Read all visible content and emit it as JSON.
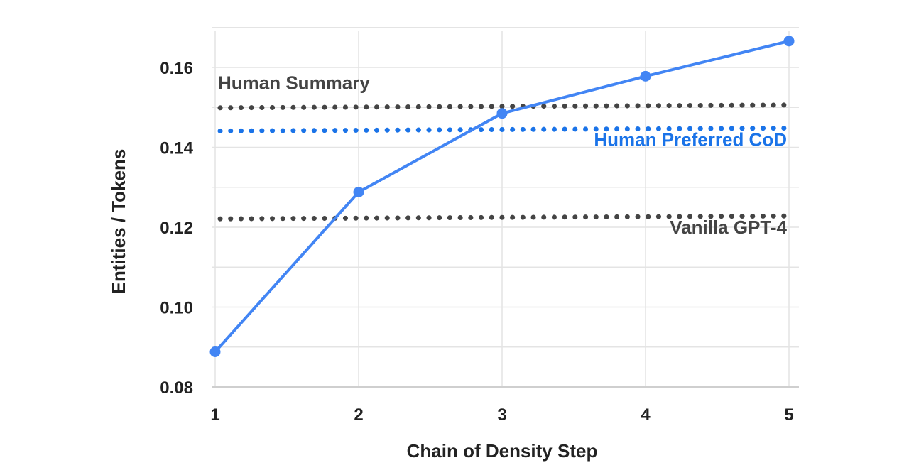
{
  "chart_data": {
    "type": "line",
    "xlabel": "Chain of Density Step",
    "ylabel": "Entities / Tokens",
    "x": [
      1,
      2,
      3,
      4,
      5
    ],
    "x_ticks": [
      "1",
      "2",
      "3",
      "4",
      "5"
    ],
    "y_ticks": [
      "0.08",
      "0.10",
      "0.12",
      "0.14",
      "0.16"
    ],
    "ylim": [
      0.08,
      0.17
    ],
    "xlim": [
      1,
      5
    ],
    "grid": true,
    "series": [
      {
        "values": [
          0.0888,
          0.1288,
          0.1485,
          0.1578,
          0.1666
        ],
        "color": "#4285f4"
      }
    ],
    "reference_lines": [
      {
        "label": "Human Summary",
        "y_start": 0.1499,
        "y_end": 0.1506,
        "color": "#444444",
        "label_anchor": "start",
        "label_y": 0.1546
      },
      {
        "label": "Human Preferred CoD",
        "y_start": 0.1441,
        "y_end": 0.1448,
        "color": "#1a73e8",
        "label_anchor": "end",
        "label_y": 0.1404
      },
      {
        "label": "Vanilla GPT-4",
        "y_start": 0.1221,
        "y_end": 0.1228,
        "color": "#444444",
        "label_anchor": "end",
        "label_y": 0.1184
      }
    ]
  }
}
